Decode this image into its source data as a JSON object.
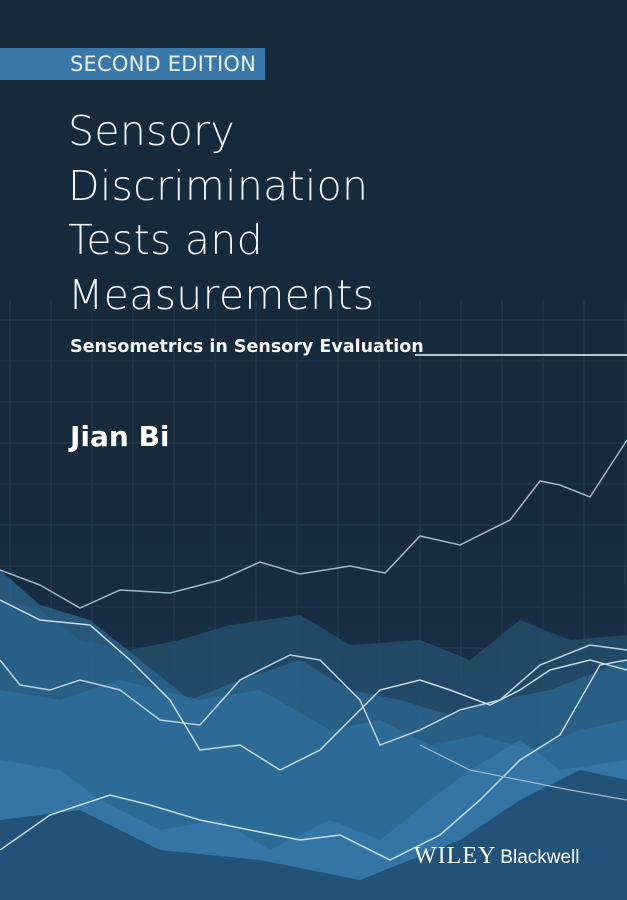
{
  "cover": {
    "edition": "SECOND EDITION",
    "title_lines": [
      "Sensory",
      "Discrimination",
      "Tests and",
      "Measurements"
    ],
    "subtitle": "Sensometrics in Sensory Evaluation",
    "author": "Jian Bi",
    "publisher": {
      "name": "WILEY",
      "imprint": "Blackwell"
    }
  },
  "colors": {
    "background": "#172a3c",
    "edition_band": "#3a78a9",
    "chart_fill": "#3a7db0",
    "line": "#a9c6dc"
  }
}
